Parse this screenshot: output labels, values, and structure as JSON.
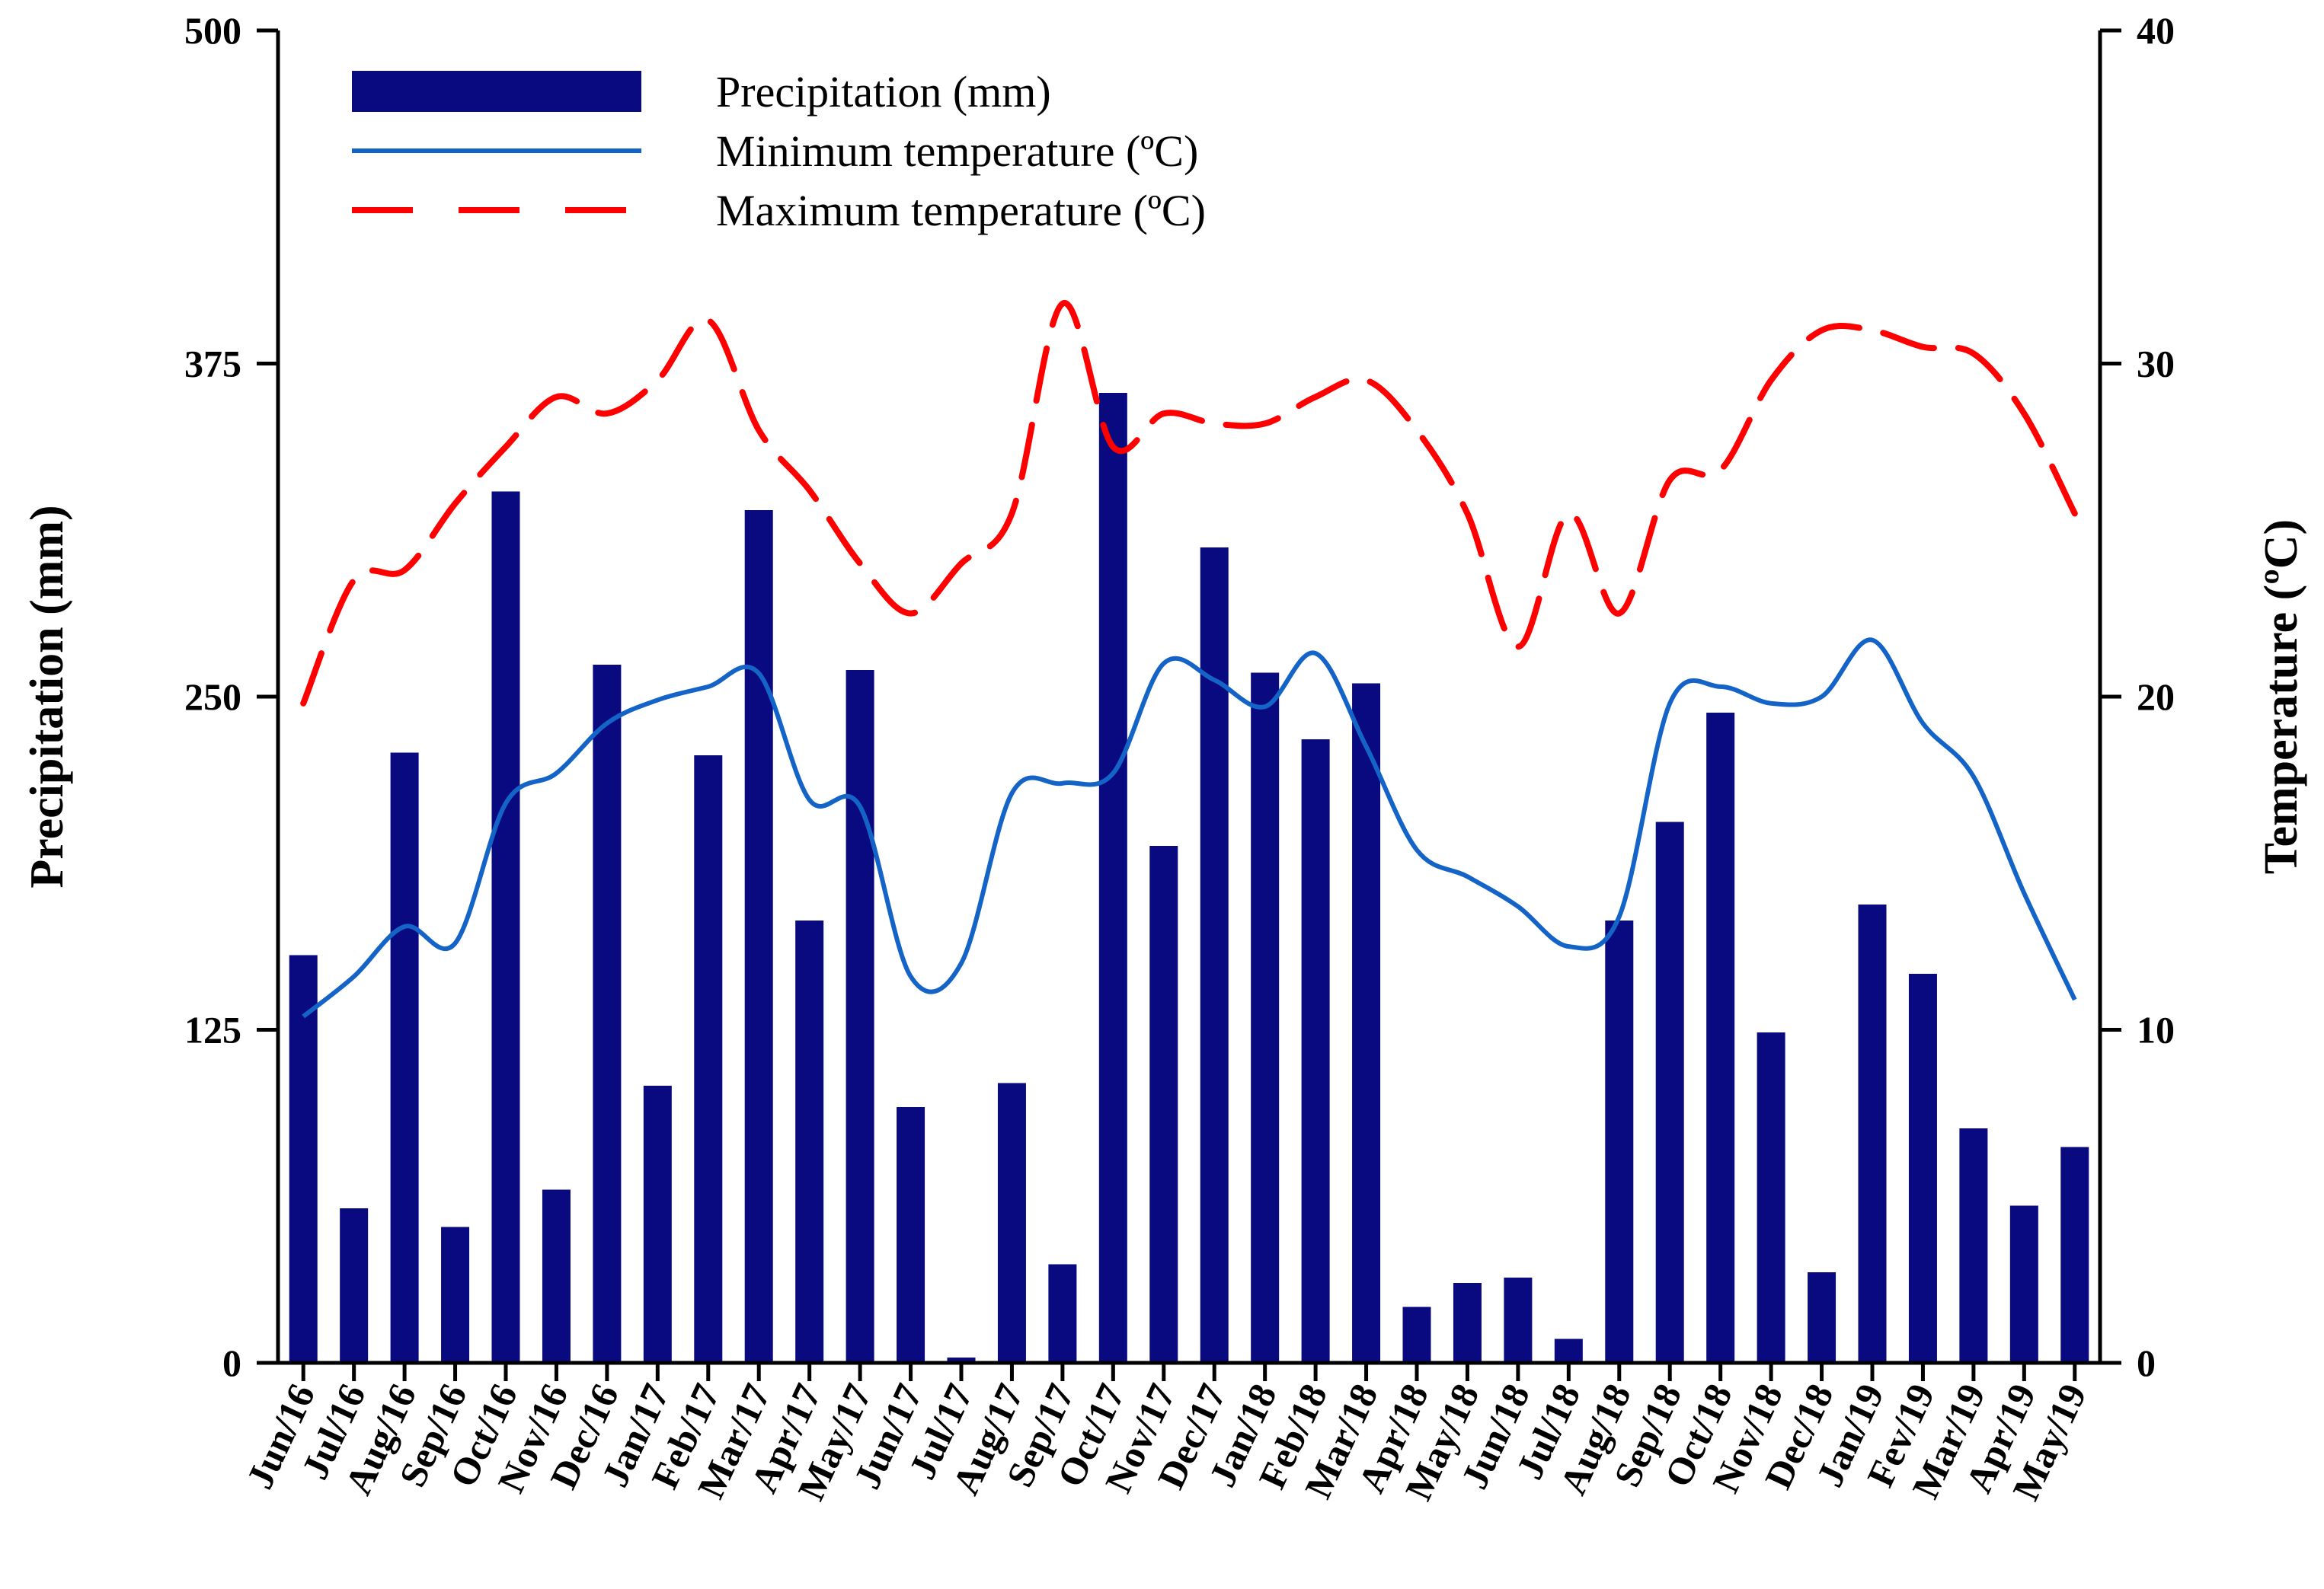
{
  "chart_data": {
    "type": "bar+line",
    "categories": [
      "Jun/16",
      "Jul/16",
      "Aug/16",
      "Sep/16",
      "Oct/16",
      "Nov/16",
      "Dec/16",
      "Jan/17",
      "Feb/17",
      "Mar/17",
      "Apr/17",
      "May/17",
      "Jun/17",
      "Jul/17",
      "Aug/17",
      "Sep/17",
      "Oct/17",
      "Nov/17",
      "Dec/17",
      "Jan/18",
      "Feb/18",
      "Mar/18",
      "Apr/18",
      "May/18",
      "Jun/18",
      "Jul/18",
      "Aug/18",
      "Sep/18",
      "Oct/18",
      "Nov/18",
      "Dec/18",
      "Jan/19",
      "Fev/19",
      "Mar/19",
      "Apr/19",
      "May/19"
    ],
    "series": [
      {
        "name": "Precipitation (mm)",
        "type": "bar",
        "axis": "left",
        "color": "#0a0a80",
        "values": [
          153,
          58,
          229,
          51,
          327,
          65,
          262,
          104,
          228,
          320,
          166,
          260,
          96,
          2,
          105,
          37,
          364,
          194,
          306,
          259,
          234,
          255,
          21,
          30,
          32,
          9,
          166,
          203,
          244,
          124,
          34,
          172,
          146,
          88,
          59,
          81
        ]
      },
      {
        "name": "Minimum temperature (ºC)",
        "type": "line",
        "axis": "right",
        "color": "#1464c8",
        "dash": "solid",
        "values": [
          10.4,
          11.6,
          13.1,
          12.6,
          16.8,
          17.7,
          19.2,
          19.9,
          20.3,
          20.7,
          16.9,
          16.7,
          11.6,
          12.0,
          17.1,
          17.4,
          17.7,
          21.0,
          20.5,
          19.7,
          21.3,
          18.5,
          15.4,
          14.6,
          13.7,
          12.5,
          13.4,
          19.8,
          20.3,
          19.8,
          20.0,
          21.7,
          19.2,
          17.6,
          14.1,
          10.9
        ]
      },
      {
        "name": "Maximum temperature (ºC)",
        "type": "line",
        "axis": "right",
        "color": "#ff0000",
        "dash": "dashed",
        "values": [
          19.8,
          23.5,
          23.8,
          25.8,
          27.5,
          29.0,
          28.5,
          29.5,
          31.3,
          28.0,
          26.2,
          24.0,
          22.5,
          24.0,
          25.5,
          31.8,
          27.5,
          28.5,
          28.2,
          28.2,
          29.0,
          29.5,
          28.0,
          25.5,
          21.5,
          25.5,
          22.5,
          26.5,
          26.8,
          29.5,
          31.0,
          31.0,
          30.5,
          30.3,
          28.5,
          25.5
        ]
      }
    ],
    "left_axis": {
      "title": "Precipitation (mm)",
      "ylim": [
        0,
        500
      ],
      "ticks": [
        0,
        125,
        250,
        375,
        500
      ],
      "tick_labels": [
        "0",
        "125",
        "250",
        "375",
        "500"
      ]
    },
    "right_axis": {
      "title": "Temperature (ºC)",
      "ylim": [
        0,
        40
      ],
      "ticks": [
        0,
        10,
        20,
        30,
        40
      ],
      "tick_labels": [
        "0",
        "10",
        "20",
        "30",
        "40"
      ]
    },
    "legend": {
      "placement": "top-left",
      "entries": [
        "Precipitation (mm)",
        "Minimum temperature (ºC)",
        "Maximum temperature (ºC)"
      ]
    },
    "grid": false
  }
}
